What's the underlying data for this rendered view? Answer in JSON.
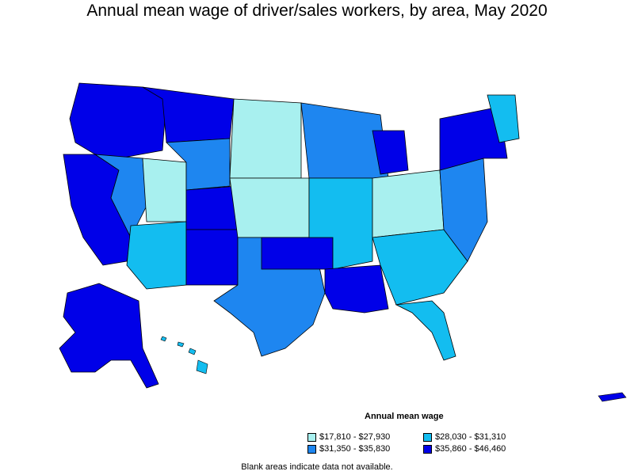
{
  "title": "Annual mean wage of driver/sales workers, by area, May 2020",
  "legend": {
    "title": "Annual mean wage",
    "items": [
      {
        "label": "$17,810 - $27,930",
        "color": "#a8f0ef"
      },
      {
        "label": "$28,030 - $31,310",
        "color": "#13bdf0"
      },
      {
        "label": "$31,350 - $35,830",
        "color": "#1e86f0"
      },
      {
        "label": "$35,860 - $46,460",
        "color": "#0000e8"
      }
    ]
  },
  "note": "Blank areas indicate data not available."
}
